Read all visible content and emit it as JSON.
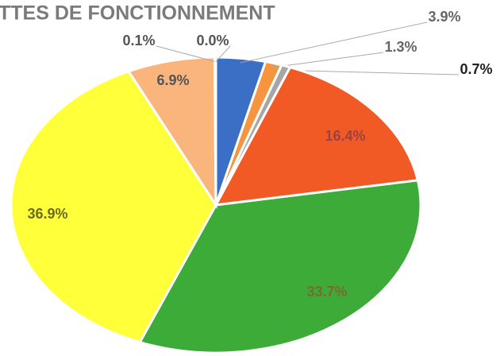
{
  "chart_data": {
    "type": "pie",
    "title": "TTES DE FONCTIONNEMENT",
    "categories": [
      null,
      null,
      null,
      null,
      null,
      null,
      null,
      null,
      null
    ],
    "values": [
      3.9,
      1.3,
      0.7,
      16.4,
      33.7,
      36.9,
      6.9,
      0.1,
      0.0
    ],
    "value_labels": [
      "3.9%",
      "1.3%",
      "0.7%",
      "16.4%",
      "33.7%",
      "36.9%",
      "6.9%",
      "0.1%",
      "0.0%"
    ],
    "colors": [
      "#3b6fc6",
      "#f7943f",
      "#a6a6a6",
      "#f15a24",
      "#3dab38",
      "#ffff3a",
      "#f9b57c",
      "#d9d9d9",
      "#5b9bd5"
    ]
  }
}
